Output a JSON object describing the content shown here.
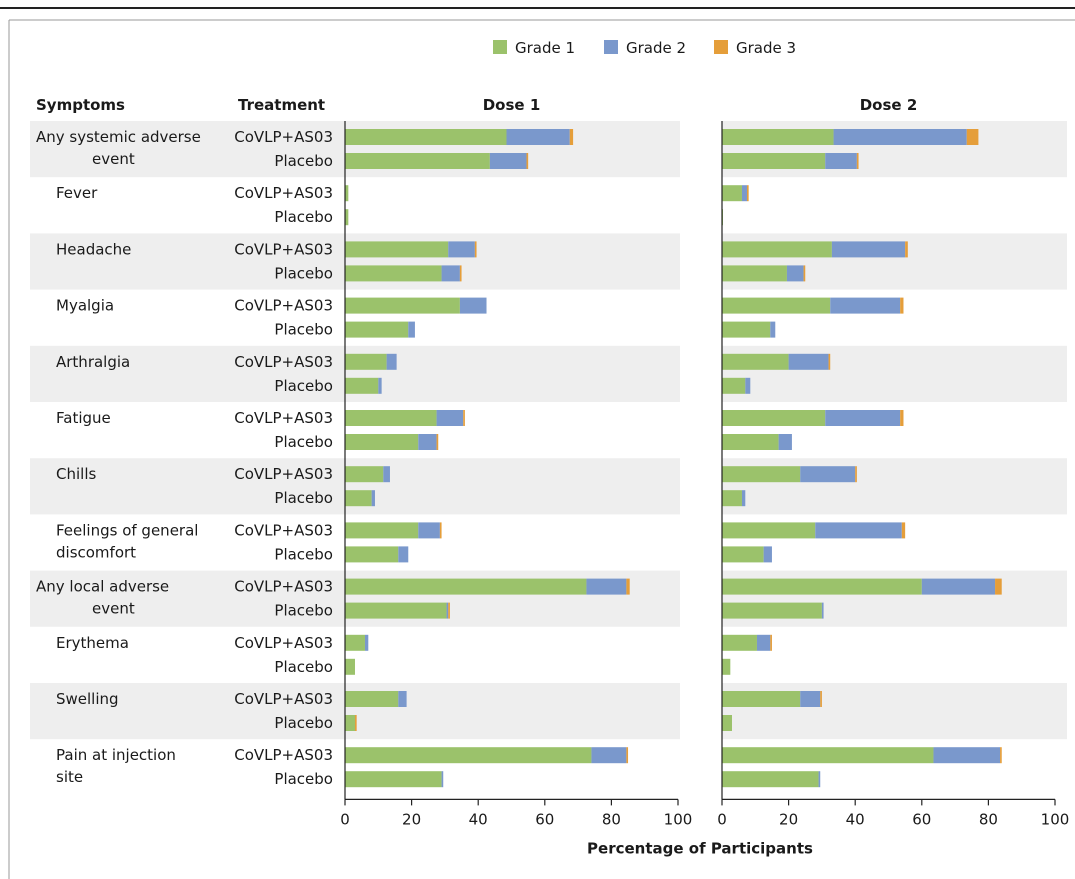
{
  "chart_data": {
    "type": "bar",
    "stacked": true,
    "orientation": "horizontal",
    "colors": {
      "Grade 1": "#9bc26b",
      "Grade 2": "#7a98cc",
      "Grade 3": "#e59e3a",
      "band": "#eeeeee"
    },
    "legend": {
      "placement": "top-center",
      "items": [
        "Grade 1",
        "Grade 2",
        "Grade 3"
      ]
    },
    "headers": {
      "symptoms": "Symptoms",
      "treatment": "Treatment"
    },
    "panels": [
      "Dose 1",
      "Dose 2"
    ],
    "xlabel": "Percentage of Participants",
    "xlim": [
      0,
      100
    ],
    "xticks": [
      "0",
      "20",
      "40",
      "60",
      "80",
      "100"
    ],
    "groups": [
      {
        "symptom_lines": [
          "Any systemic adverse",
          "event"
        ],
        "indent": false,
        "rows": [
          {
            "treatment": "CoVLP+AS03",
            "dose1": [
              48.5,
              19.0,
              1.0
            ],
            "dose2": [
              33.5,
              40.0,
              3.5
            ]
          },
          {
            "treatment": "Placebo",
            "dose1": [
              43.5,
              11.0,
              0.5
            ],
            "dose2": [
              31.0,
              9.5,
              0.5
            ]
          }
        ]
      },
      {
        "symptom_lines": [
          "Fever"
        ],
        "indent": true,
        "rows": [
          {
            "treatment": "CoVLP+AS03",
            "dose1": [
              1.0,
              0.0,
              0.0
            ],
            "dose2": [
              6.0,
              1.5,
              0.5
            ]
          },
          {
            "treatment": "Placebo",
            "dose1": [
              1.0,
              0.0,
              0.0
            ],
            "dose2": [
              0.3,
              0.0,
              0.0
            ]
          }
        ]
      },
      {
        "symptom_lines": [
          "Headache"
        ],
        "indent": true,
        "rows": [
          {
            "treatment": "CoVLP+AS03",
            "dose1": [
              31.0,
              8.0,
              0.5
            ],
            "dose2": [
              33.0,
              22.0,
              0.8
            ]
          },
          {
            "treatment": "Placebo",
            "dose1": [
              29.0,
              5.5,
              0.5
            ],
            "dose2": [
              19.5,
              5.0,
              0.5
            ]
          }
        ]
      },
      {
        "symptom_lines": [
          "Myalgia"
        ],
        "indent": true,
        "rows": [
          {
            "treatment": "CoVLP+AS03",
            "dose1": [
              34.5,
              8.0,
              0.0
            ],
            "dose2": [
              32.5,
              21.0,
              1.0
            ]
          },
          {
            "treatment": "Placebo",
            "dose1": [
              19.0,
              2.0,
              0.0
            ],
            "dose2": [
              14.5,
              1.5,
              0.0
            ]
          }
        ]
      },
      {
        "symptom_lines": [
          "Arthralgia"
        ],
        "indent": true,
        "rows": [
          {
            "treatment": "CoVLP+AS03",
            "dose1": [
              12.5,
              3.0,
              0.0
            ],
            "dose2": [
              20.0,
              12.0,
              0.5
            ]
          },
          {
            "treatment": "Placebo",
            "dose1": [
              10.0,
              1.0,
              0.0
            ],
            "dose2": [
              7.0,
              1.5,
              0.0
            ]
          }
        ]
      },
      {
        "symptom_lines": [
          "Fatigue"
        ],
        "indent": true,
        "rows": [
          {
            "treatment": "CoVLP+AS03",
            "dose1": [
              27.5,
              8.0,
              0.5
            ],
            "dose2": [
              31.0,
              22.5,
              1.0
            ]
          },
          {
            "treatment": "Placebo",
            "dose1": [
              22.0,
              5.5,
              0.5
            ],
            "dose2": [
              17.0,
              4.0,
              0.0
            ]
          }
        ]
      },
      {
        "symptom_lines": [
          "Chills"
        ],
        "indent": true,
        "rows": [
          {
            "treatment": "CoVLP+AS03",
            "dose1": [
              11.5,
              2.0,
              0.0
            ],
            "dose2": [
              23.5,
              16.5,
              0.5
            ]
          },
          {
            "treatment": "Placebo",
            "dose1": [
              8.0,
              1.0,
              0.0
            ],
            "dose2": [
              6.0,
              1.0,
              0.0
            ]
          }
        ]
      },
      {
        "symptom_lines": [
          "Feelings of general",
          "discomfort"
        ],
        "indent": true,
        "rows": [
          {
            "treatment": "CoVLP+AS03",
            "dose1": [
              22.0,
              6.5,
              0.5
            ],
            "dose2": [
              28.0,
              26.0,
              1.0
            ]
          },
          {
            "treatment": "Placebo",
            "dose1": [
              16.0,
              3.0,
              0.0
            ],
            "dose2": [
              12.5,
              2.5,
              0.0
            ]
          }
        ]
      },
      {
        "symptom_lines": [
          "Any local adverse",
          "event"
        ],
        "indent": false,
        "rows": [
          {
            "treatment": "CoVLP+AS03",
            "dose1": [
              72.5,
              12.0,
              1.0
            ],
            "dose2": [
              60.0,
              22.0,
              2.0
            ]
          },
          {
            "treatment": "Placebo",
            "dose1": [
              30.5,
              0.5,
              0.5
            ],
            "dose2": [
              30.0,
              0.5,
              0.0
            ]
          }
        ]
      },
      {
        "symptom_lines": [
          "Erythema"
        ],
        "indent": true,
        "rows": [
          {
            "treatment": "CoVLP+AS03",
            "dose1": [
              6.0,
              1.0,
              0.0
            ],
            "dose2": [
              10.5,
              4.0,
              0.5
            ]
          },
          {
            "treatment": "Placebo",
            "dose1": [
              3.0,
              0.0,
              0.0
            ],
            "dose2": [
              2.5,
              0.0,
              0.0
            ]
          }
        ]
      },
      {
        "symptom_lines": [
          "Swelling"
        ],
        "indent": true,
        "rows": [
          {
            "treatment": "CoVLP+AS03",
            "dose1": [
              16.0,
              2.5,
              0.0
            ],
            "dose2": [
              23.5,
              6.0,
              0.5
            ]
          },
          {
            "treatment": "Placebo",
            "dose1": [
              3.0,
              0.0,
              0.5
            ],
            "dose2": [
              3.0,
              0.0,
              0.0
            ]
          }
        ]
      },
      {
        "symptom_lines": [
          "Pain at injection",
          "site"
        ],
        "indent": true,
        "rows": [
          {
            "treatment": "CoVLP+AS03",
            "dose1": [
              74.0,
              10.5,
              0.5
            ],
            "dose2": [
              63.5,
              20.0,
              0.5
            ]
          },
          {
            "treatment": "Placebo",
            "dose1": [
              29.0,
              0.5,
              0.0
            ],
            "dose2": [
              29.0,
              0.5,
              0.0
            ]
          }
        ]
      }
    ]
  }
}
